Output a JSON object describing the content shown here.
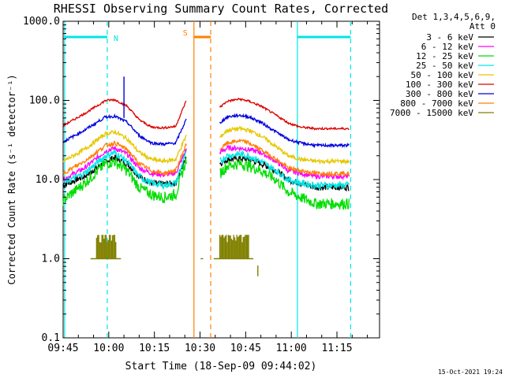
{
  "chart_data": {
    "type": "line",
    "title": "RHESSI Observing Summary Count Rates, Corrected",
    "xlabel": "Start Time (18-Sep-09 09:44:02)",
    "ylabel": "Corrected Count Rate (s⁻¹ detector⁻¹)",
    "footer": "15-Oct-2021 19:24",
    "yscale": "log",
    "ylim": [
      0.1,
      1000.0
    ],
    "y_ticks": [
      "0.1",
      "1.0",
      "10.0",
      "100.0",
      "1000.0"
    ],
    "x_range_minutes": [
      0,
      104
    ],
    "x_ticks": [
      {
        "label": "09:45",
        "minutes": 0
      },
      {
        "label": "10:00",
        "minutes": 15
      },
      {
        "label": "10:15",
        "minutes": 30
      },
      {
        "label": "10:30",
        "minutes": 45
      },
      {
        "label": "10:45",
        "minutes": 60
      },
      {
        "label": "11:00",
        "minutes": 75
      },
      {
        "label": "11:15",
        "minutes": 90
      }
    ],
    "legend": {
      "header": [
        "Det 1,3,4,5,6,9,",
        "Att 0"
      ],
      "position": "right"
    },
    "gap_minutes": [
      40.5,
      51.5
    ],
    "markers": [
      {
        "label": "N",
        "color": "#00e5e5",
        "bar_range": [
          0.5,
          14.5
        ],
        "lines": [
          0.5,
          14.5
        ],
        "styles": [
          "solid",
          "dashed"
        ]
      },
      {
        "label": "S",
        "color": "#ff8000",
        "bar_range": [
          43.0,
          48.5
        ],
        "lines": [
          43.0,
          48.5
        ],
        "styles": [
          "solid",
          "dashed"
        ]
      },
      {
        "label": "",
        "color": "#00e5e5",
        "bar_range": [
          77.0,
          94.5
        ],
        "lines": [
          77.0,
          94.5
        ],
        "styles": [
          "solid",
          "dashed"
        ]
      }
    ],
    "series": [
      {
        "name": "3 - 6 keV",
        "color": "#000000",
        "x": [
          0,
          7,
          14,
          17,
          21,
          25,
          29,
          33,
          37,
          40.5,
          51.5,
          54,
          58,
          61,
          65,
          70,
          74,
          78,
          83,
          88,
          94
        ],
        "values": [
          8.5,
          11,
          17,
          19,
          16,
          11,
          9,
          8.8,
          9.0,
          20,
          16,
          18,
          18.5,
          18,
          16,
          13,
          10,
          9,
          8,
          8,
          8
        ]
      },
      {
        "name": "6 - 12 keV",
        "color": "#ff00ff",
        "x": [
          0,
          7,
          14,
          17,
          21,
          25,
          29,
          33,
          37,
          40.5,
          51.5,
          54,
          58,
          61,
          65,
          70,
          74,
          78,
          83,
          88,
          94
        ],
        "values": [
          10,
          14,
          23,
          25,
          21,
          14,
          12,
          11.5,
          12,
          24,
          22,
          25,
          25,
          24,
          22,
          17,
          13,
          12,
          11,
          11,
          11
        ]
      },
      {
        "name": "12 - 25 keV",
        "color": "#00dd00",
        "x": [
          0,
          7,
          14,
          17,
          21,
          25,
          29,
          33,
          37,
          40.5,
          51.5,
          54,
          58,
          61,
          65,
          70,
          74,
          78,
          83,
          88,
          94
        ],
        "values": [
          5.5,
          9,
          16,
          17,
          13,
          8,
          6.5,
          6,
          6.5,
          18,
          12,
          15,
          16,
          15,
          13,
          10,
          7,
          6,
          5,
          5,
          5
        ]
      },
      {
        "name": "25 - 50 keV",
        "color": "#00e5e5",
        "x": [
          0,
          7,
          14,
          17,
          21,
          25,
          29,
          33,
          37,
          40.5,
          51.5,
          54,
          58,
          61,
          65,
          70,
          74,
          78,
          83,
          88,
          94
        ],
        "values": [
          9,
          12,
          20,
          22,
          17,
          11,
          9,
          8.5,
          9,
          22,
          17,
          20,
          21,
          20,
          17,
          13,
          10,
          9,
          8.5,
          8.5,
          8.5
        ]
      },
      {
        "name": "50 - 100 keV",
        "color": "#e5c800",
        "x": [
          0,
          7,
          14,
          17,
          21,
          25,
          29,
          33,
          37,
          40.5,
          51.5,
          54,
          58,
          61,
          65,
          70,
          74,
          78,
          83,
          88,
          94
        ],
        "values": [
          17,
          24,
          38,
          40,
          33,
          22,
          18,
          17,
          18,
          36,
          34,
          42,
          44,
          42,
          36,
          26,
          20,
          18,
          17,
          17,
          17
        ]
      },
      {
        "name": "100 - 300 keV",
        "color": "#dd0000",
        "x": [
          0,
          7,
          14,
          17,
          21,
          25,
          29,
          33,
          37,
          40.5,
          51.5,
          54,
          58,
          61,
          65,
          70,
          74,
          78,
          83,
          88,
          94
        ],
        "values": [
          48,
          68,
          100,
          102,
          85,
          57,
          46,
          45,
          47,
          100,
          82,
          98,
          104,
          98,
          85,
          65,
          52,
          46,
          44,
          44,
          44
        ]
      },
      {
        "name": "300 - 800 keV",
        "color": "#0000dd",
        "x": [
          0,
          7,
          14,
          17,
          21,
          25,
          29,
          33,
          37,
          40.5,
          51.5,
          54,
          58,
          61,
          65,
          70,
          74,
          78,
          83,
          88,
          94
        ],
        "values": [
          30,
          42,
          62,
          63,
          53,
          36,
          29,
          28,
          29,
          58,
          52,
          62,
          65,
          62,
          53,
          40,
          32,
          29,
          27,
          27,
          27
        ]
      },
      {
        "name": "800 - 7000 keV",
        "color": "#ff8000",
        "x": [
          0,
          7,
          14,
          17,
          21,
          25,
          29,
          33,
          37,
          40.5,
          51.5,
          54,
          58,
          61,
          65,
          70,
          74,
          78,
          83,
          88,
          94
        ],
        "values": [
          12,
          17,
          27,
          29,
          24,
          16,
          13,
          12,
          13,
          28,
          24,
          29,
          31,
          29,
          24,
          18,
          14,
          13,
          12,
          12,
          12
        ]
      },
      {
        "name": "7000 - 15000 keV",
        "color": "#808000",
        "x": [
          11,
          17,
          24,
          45.5,
          52,
          61,
          64,
          63.8,
          64.5
        ],
        "values": [
          1.0,
          1.0,
          1.0,
          1.0,
          1.0,
          1.0,
          1.0,
          0.8,
          0.62
        ]
      }
    ],
    "spike": {
      "x": 20,
      "y_low": 60,
      "y_high": 200,
      "color": "#0000dd"
    },
    "blocks_7000": [
      [
        11,
        17.5
      ],
      [
        51.5,
        61
      ]
    ]
  }
}
